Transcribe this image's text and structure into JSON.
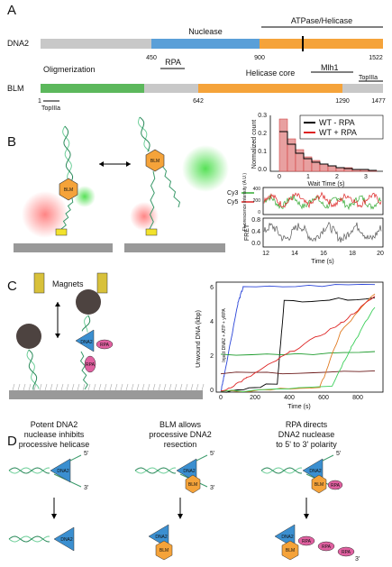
{
  "panels": {
    "a": "A",
    "b": "B",
    "c": "C",
    "d": "D"
  },
  "dna2": {
    "name": "DNA2",
    "nuclease": "Nuclease",
    "helicase": "ATPase/Helicase",
    "pos": [
      "450",
      "900",
      "1522"
    ]
  },
  "blm": {
    "name": "BLM",
    "oligo": "Oligmerization",
    "rpa": "RPA",
    "core": "Helicase core",
    "mlh1": "Mlh1",
    "top_a": "TopIIIa",
    "top_b": "TopIIIa",
    "pos": [
      "1",
      "642",
      "1290",
      "1477"
    ]
  },
  "hist": {
    "ylabel": "Normalized count",
    "xlabel": "Wait Time (s)",
    "yticks": [
      "0.0",
      "0.1",
      "0.2",
      "0.3"
    ],
    "xticks": [
      "0",
      "1",
      "2",
      "3"
    ],
    "legend": [
      "WT - RPA",
      "WT + RPA"
    ]
  },
  "traces": {
    "legend": [
      "Cy3",
      "Cy5"
    ],
    "ylabel1": "Fluorescence intensity (A.U.)",
    "yticks1": [
      "0",
      "200",
      "400"
    ],
    "ylabel2": "FRET",
    "yticks2": [
      "0.0",
      "0.4",
      "0.8"
    ],
    "xticks": [
      "12",
      "14",
      "16",
      "18",
      "20"
    ],
    "xlabel": "Time (s)"
  },
  "magnets": "Magnets",
  "unwind": {
    "ylabel": "Unwound DNA (kbp)",
    "yticks": [
      "0",
      "2",
      "4",
      "6"
    ],
    "xticks": [
      "0",
      "200",
      "400",
      "600",
      "800"
    ],
    "xlabel": "Time (s)",
    "note": "Inject DNA2 + ATP + yRPA"
  },
  "cols": [
    [
      "Potent DNA2",
      "nuclease inhibits",
      "processive helicase"
    ],
    [
      "BLM allows",
      "processive DNA2",
      "resection"
    ],
    [
      "RPA directs",
      "DNA2 nuclease",
      "to 5' to 3' polarity"
    ]
  ],
  "labels": {
    "dna2": "DNA2",
    "blm": "BLM",
    "rpa": "RPA",
    "five": "5'",
    "three": "3'"
  }
}
